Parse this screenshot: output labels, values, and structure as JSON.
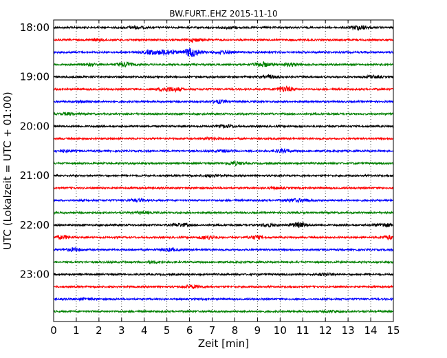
{
  "chart_data": {
    "type": "line",
    "title": "BW.FURT..EHZ 2015-11-10",
    "xlabel": "Zeit  [min]",
    "ylabel": "UTC (Lokalzeit = UTC + 01:00)",
    "xlim": [
      0,
      15
    ],
    "x_ticks": [
      "0",
      "1",
      "2",
      "3",
      "4",
      "5",
      "6",
      "7",
      "8",
      "9",
      "10",
      "11",
      "12",
      "13",
      "14",
      "15"
    ],
    "y_tick_labels": [
      "18:00",
      "19:00",
      "20:00",
      "21:00",
      "22:00",
      "23:00"
    ],
    "grid": "dotted vertical",
    "trace_colors": [
      "#000000",
      "#ff0000",
      "#0000ff",
      "#008000"
    ],
    "trace_interval_min": 15,
    "traces": [
      {
        "start": "18:00",
        "bursts": [
          [
            13.5,
            3
          ],
          [
            3.6,
            1.5
          ],
          [
            7.8,
            1.2
          ]
        ]
      },
      {
        "start": "18:15",
        "bursts": [
          [
            6.2,
            2
          ],
          [
            2.0,
            1.2
          ]
        ]
      },
      {
        "start": "18:30",
        "bursts": [
          [
            6.1,
            6
          ],
          [
            5.0,
            4
          ],
          [
            4.3,
            2.5
          ],
          [
            7.5,
            2
          ]
        ]
      },
      {
        "start": "18:45",
        "bursts": [
          [
            3.1,
            3
          ],
          [
            9.2,
            3
          ],
          [
            1.6,
            1.5
          ],
          [
            10.5,
            2
          ]
        ]
      },
      {
        "start": "19:00",
        "bursts": [
          [
            9.6,
            1.8
          ],
          [
            14.1,
            1.5
          ]
        ]
      },
      {
        "start": "19:15",
        "bursts": [
          [
            10.2,
            3.5
          ],
          [
            4.9,
            2
          ],
          [
            5.4,
            2
          ]
        ]
      },
      {
        "start": "19:30",
        "bursts": [
          [
            7.3,
            2
          ],
          [
            1.3,
            1.2
          ]
        ]
      },
      {
        "start": "19:45",
        "bursts": [
          [
            0.6,
            1.3
          ]
        ]
      },
      {
        "start": "20:00",
        "bursts": [
          [
            7.6,
            1.8
          ]
        ]
      },
      {
        "start": "20:15",
        "bursts": [
          [
            6.9,
            1.2
          ]
        ]
      },
      {
        "start": "20:30",
        "bursts": [
          [
            10.1,
            2
          ],
          [
            0.5,
            1.3
          ],
          [
            7.5,
            1.3
          ]
        ]
      },
      {
        "start": "20:45",
        "bursts": [
          [
            8.0,
            2.2
          ]
        ]
      },
      {
        "start": "21:00",
        "bursts": [
          [
            7.0,
            1.3
          ]
        ]
      },
      {
        "start": "21:15",
        "bursts": [
          [
            9.8,
            1.1
          ]
        ]
      },
      {
        "start": "21:30",
        "bursts": [
          [
            3.7,
            1.5
          ],
          [
            11.0,
            1.5
          ],
          [
            10.5,
            1.3
          ]
        ]
      },
      {
        "start": "21:45",
        "bursts": [
          [
            4.0,
            1.1
          ]
        ]
      },
      {
        "start": "22:00",
        "bursts": [
          [
            10.8,
            3
          ],
          [
            14.6,
            2.5
          ],
          [
            5.6,
            2
          ],
          [
            9.5,
            2
          ]
        ]
      },
      {
        "start": "22:15",
        "bursts": [
          [
            6.8,
            2.5
          ],
          [
            0.4,
            2.2
          ],
          [
            14.8,
            2.2
          ],
          [
            8.9,
            2
          ]
        ]
      },
      {
        "start": "22:30",
        "bursts": [
          [
            0.9,
            2
          ],
          [
            5.1,
            1.8
          ]
        ]
      },
      {
        "start": "22:45",
        "bursts": [
          [
            4.4,
            1.2
          ]
        ]
      },
      {
        "start": "23:00",
        "bursts": [
          [
            12.0,
            1.5
          ]
        ]
      },
      {
        "start": "23:15",
        "bursts": [
          [
            6.2,
            2
          ]
        ]
      },
      {
        "start": "23:30",
        "bursts": [
          [
            1.4,
            1.1
          ]
        ]
      },
      {
        "start": "23:45",
        "bursts": [
          [
            12.3,
            1.2
          ]
        ]
      }
    ]
  }
}
